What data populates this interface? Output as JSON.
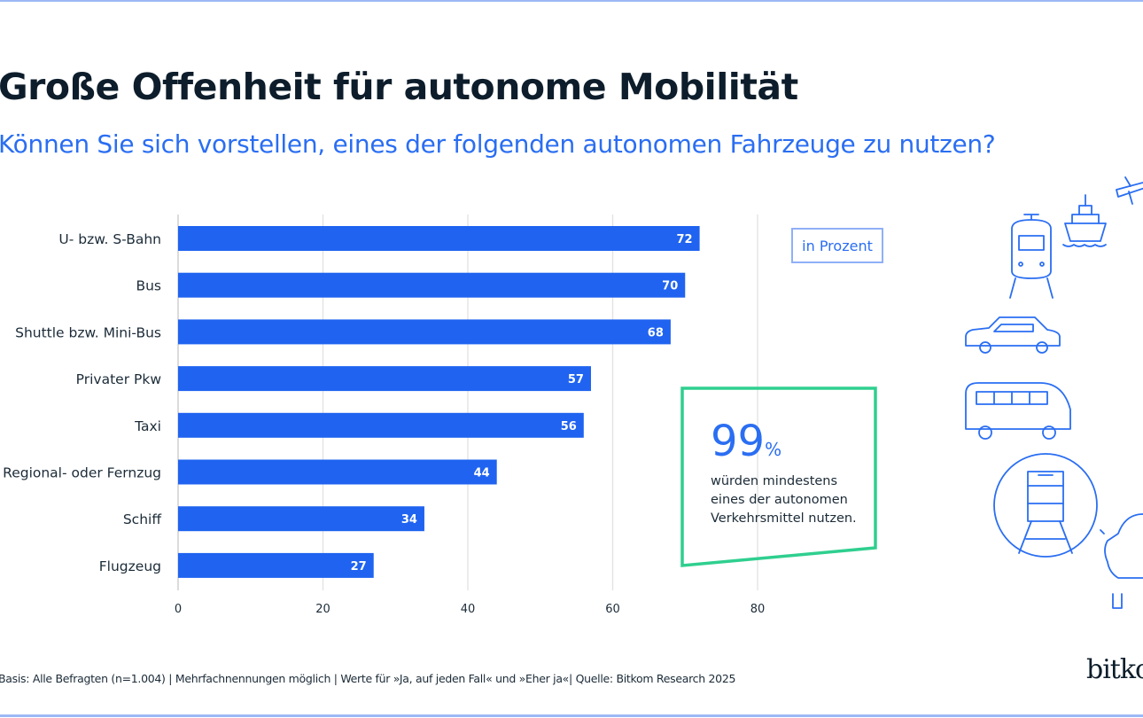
{
  "title": "Große Offenheit für autonome Mobilität",
  "subtitle": "Können Sie sich vorstellen, eines der folgenden autonomen Fahrzeuge zu nutzen?",
  "unit_label": "in Prozent",
  "callout": {
    "value": "99",
    "unit": "%",
    "text": "würden mindestens eines der autonomen Verkehrsmittel nutzen."
  },
  "footer": "Basis: Alle Befragten (n=1.004) | Mehrfachnennungen möglich | Werte für »Ja, auf jeden Fall« und »Eher ja«| Quelle: Bitkom Research 2025",
  "logo": "bitkom",
  "colors": {
    "bar": "#1f63f0",
    "accent": "#2a6ef2",
    "callout_border": "#2fcf8f",
    "grid": "#e2e2e2"
  },
  "icons": [
    "tram-icon",
    "ship-icon",
    "airplane-icon",
    "car-icon",
    "bus-icon",
    "train-icon",
    "car-front-icon"
  ],
  "chart_data": {
    "type": "bar",
    "orientation": "horizontal",
    "categories": [
      "U- bzw. S-Bahn",
      "Bus",
      "Shuttle bzw. Mini-Bus",
      "Privater Pkw",
      "Taxi",
      "Regional- oder Fernzug",
      "Schiff",
      "Flugzeug"
    ],
    "values": [
      72,
      70,
      68,
      57,
      56,
      44,
      34,
      27
    ],
    "xlim": [
      0,
      80
    ],
    "xticks": [
      0,
      20,
      40,
      60,
      80
    ],
    "grid": true,
    "data_labels": true
  }
}
